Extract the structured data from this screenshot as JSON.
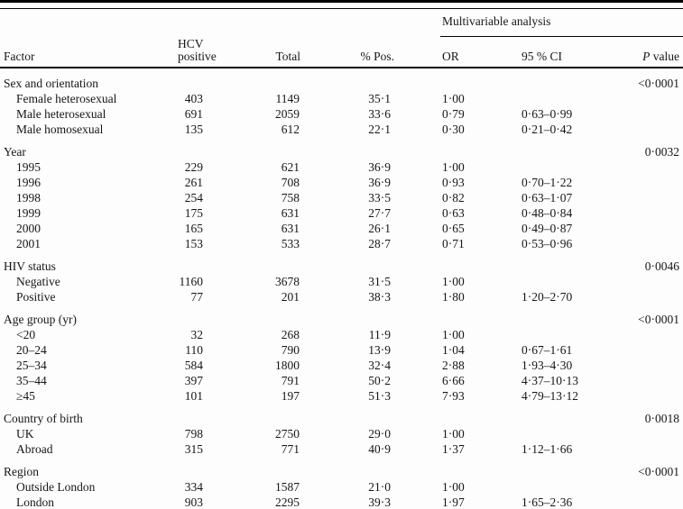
{
  "colors": {
    "background": "#fdfdfd",
    "text": "#161616",
    "rule": "#000000"
  },
  "table": {
    "header": {
      "span_label": "Multivariable analysis",
      "factor": "Factor",
      "hcv_positive": "HCV positive",
      "total": "Total",
      "pct_pos": "% Pos.",
      "or": "OR",
      "ci": "95 % CI",
      "p_italic": "P",
      "p_rest": " value"
    },
    "rows": [
      {
        "type": "group",
        "factor": "Sex and orientation",
        "hcv": "",
        "total": "",
        "pct": "",
        "or": "",
        "ci": "",
        "p": "<0·0001"
      },
      {
        "type": "item",
        "factor": "Female heterosexual",
        "hcv": "403",
        "total": "1149",
        "pct": "35·1",
        "or": "1·00",
        "ci": "",
        "p": ""
      },
      {
        "type": "item",
        "factor": "Male heterosexual",
        "hcv": "691",
        "total": "2059",
        "pct": "33·6",
        "or": "0·79",
        "ci": "0·63–0·99",
        "p": ""
      },
      {
        "type": "item",
        "factor": "Male homosexual",
        "hcv": "135",
        "total": "612",
        "pct": "22·1",
        "or": "0·30",
        "ci": "0·21–0·42",
        "p": ""
      },
      {
        "type": "group",
        "factor": "Year",
        "hcv": "",
        "total": "",
        "pct": "",
        "or": "",
        "ci": "",
        "p": "0·0032"
      },
      {
        "type": "item",
        "factor": "1995",
        "hcv": "229",
        "total": "621",
        "pct": "36·9",
        "or": "1·00",
        "ci": "",
        "p": ""
      },
      {
        "type": "item",
        "factor": "1996",
        "hcv": "261",
        "total": "708",
        "pct": "36·9",
        "or": "0·93",
        "ci": "0·70–1·22",
        "p": ""
      },
      {
        "type": "item",
        "factor": "1998",
        "hcv": "254",
        "total": "758",
        "pct": "33·5",
        "or": "0·82",
        "ci": "0·63–1·07",
        "p": ""
      },
      {
        "type": "item",
        "factor": "1999",
        "hcv": "175",
        "total": "631",
        "pct": "27·7",
        "or": "0·63",
        "ci": "0·48–0·84",
        "p": ""
      },
      {
        "type": "item",
        "factor": "2000",
        "hcv": "165",
        "total": "631",
        "pct": "26·1",
        "or": "0·65",
        "ci": "0·49–0·87",
        "p": ""
      },
      {
        "type": "item",
        "factor": "2001",
        "hcv": "153",
        "total": "533",
        "pct": "28·7",
        "or": "0·71",
        "ci": "0·53–0·96",
        "p": ""
      },
      {
        "type": "group",
        "factor": "HIV status",
        "hcv": "",
        "total": "",
        "pct": "",
        "or": "",
        "ci": "",
        "p": "0·0046"
      },
      {
        "type": "item",
        "factor": "Negative",
        "hcv": "1160",
        "total": "3678",
        "pct": "31·5",
        "or": "1·00",
        "ci": "",
        "p": ""
      },
      {
        "type": "item",
        "factor": "Positive",
        "hcv": "77",
        "total": "201",
        "pct": "38·3",
        "or": "1·80",
        "ci": "1·20–2·70",
        "p": ""
      },
      {
        "type": "group",
        "factor": "Age group (yr)",
        "hcv": "",
        "total": "",
        "pct": "",
        "or": "",
        "ci": "",
        "p": "<0·0001"
      },
      {
        "type": "item",
        "factor": "<20",
        "hcv": "32",
        "total": "268",
        "pct": "11·9",
        "or": "1·00",
        "ci": "",
        "p": ""
      },
      {
        "type": "item",
        "factor": "20–24",
        "hcv": "110",
        "total": "790",
        "pct": "13·9",
        "or": "1·04",
        "ci": "0·67–1·61",
        "p": ""
      },
      {
        "type": "item",
        "factor": "25–34",
        "hcv": "584",
        "total": "1800",
        "pct": "32·4",
        "or": "2·88",
        "ci": "1·93–4·30",
        "p": ""
      },
      {
        "type": "item",
        "factor": "35–44",
        "hcv": "397",
        "total": "791",
        "pct": "50·2",
        "or": "6·66",
        "ci": "4·37–10·13",
        "p": ""
      },
      {
        "type": "item",
        "factor": "≥45",
        "hcv": "101",
        "total": "197",
        "pct": "51·3",
        "or": "7·93",
        "ci": "4·79–13·12",
        "p": ""
      },
      {
        "type": "group",
        "factor": "Country of birth",
        "hcv": "",
        "total": "",
        "pct": "",
        "or": "",
        "ci": "",
        "p": "0·0018"
      },
      {
        "type": "item",
        "factor": "UK",
        "hcv": "798",
        "total": "2750",
        "pct": "29·0",
        "or": "1·00",
        "ci": "",
        "p": ""
      },
      {
        "type": "item",
        "factor": "Abroad",
        "hcv": "315",
        "total": "771",
        "pct": "40·9",
        "or": "1·37",
        "ci": "1·12–1·66",
        "p": ""
      },
      {
        "type": "group",
        "factor": "Region",
        "hcv": "",
        "total": "",
        "pct": "",
        "or": "",
        "ci": "",
        "p": "<0·0001"
      },
      {
        "type": "item",
        "factor": "Outside London",
        "hcv": "334",
        "total": "1587",
        "pct": "21·0",
        "or": "1·00",
        "ci": "",
        "p": ""
      },
      {
        "type": "item",
        "factor": "London",
        "hcv": "903",
        "total": "2295",
        "pct": "39·3",
        "or": "1·97",
        "ci": "1·65–2·36",
        "p": ""
      }
    ]
  }
}
